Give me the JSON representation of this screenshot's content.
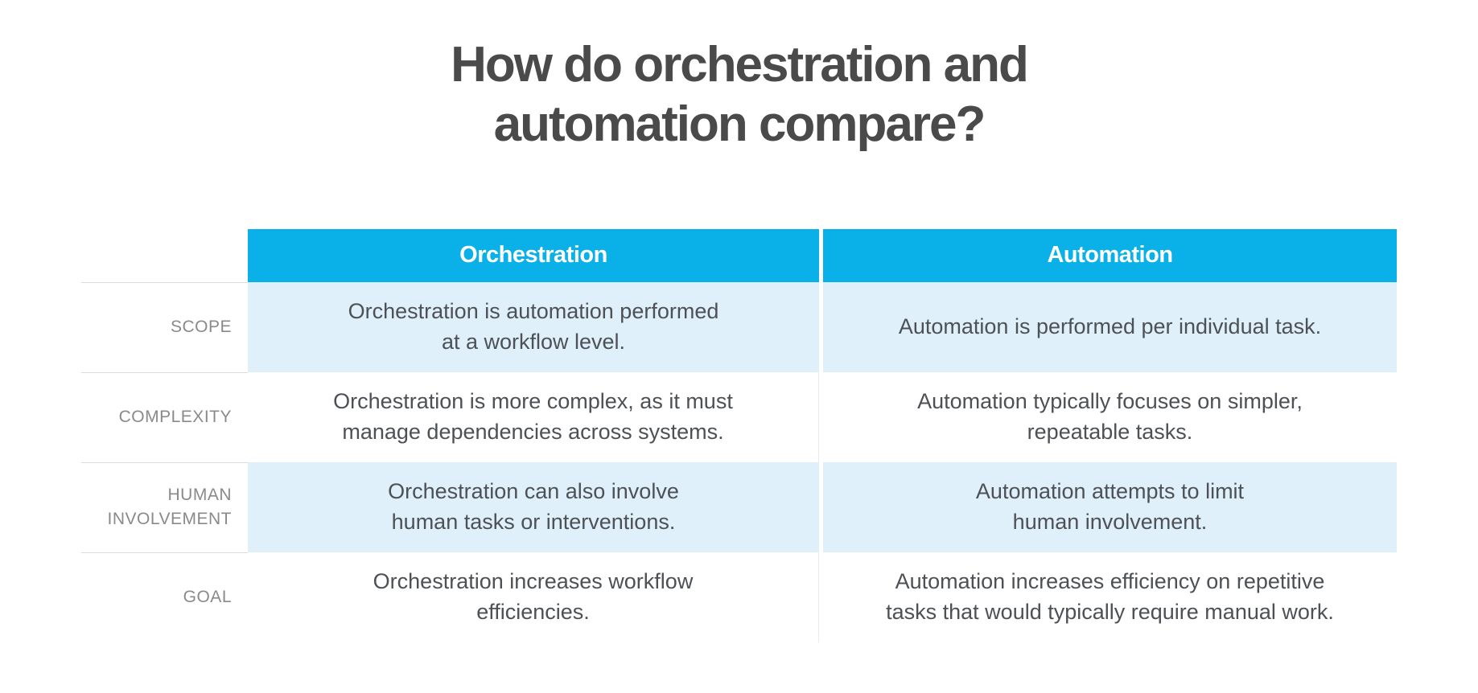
{
  "title": "How do orchestration and\nautomation compare?",
  "colors": {
    "header-blue": "#0ab1e8",
    "row-blue": "#dff0fb",
    "title-text": "#4a4a4a",
    "body-text": "#4d5156",
    "label-text": "#8a8a8a",
    "divider": "#dcdcdc"
  },
  "table": {
    "columns": [
      "Orchestration",
      "Automation"
    ],
    "rows": [
      {
        "label": "SCOPE",
        "orchestration": "Orchestration is automation performed\nat a workflow level.",
        "automation": "Automation is performed per individual task."
      },
      {
        "label": "COMPLEXITY",
        "orchestration": "Orchestration is more complex, as it must\nmanage dependencies across systems.",
        "automation": "Automation typically focuses on simpler,\nrepeatable tasks."
      },
      {
        "label": "HUMAN\nINVOLVEMENT",
        "orchestration": "Orchestration can also involve\nhuman tasks or interventions.",
        "automation": "Automation attempts to limit\nhuman involvement."
      },
      {
        "label": "GOAL",
        "orchestration": "Orchestration increases workflow\nefficiencies.",
        "automation": "Automation increases efficiency on repetitive\ntasks that would typically require manual work."
      }
    ]
  }
}
